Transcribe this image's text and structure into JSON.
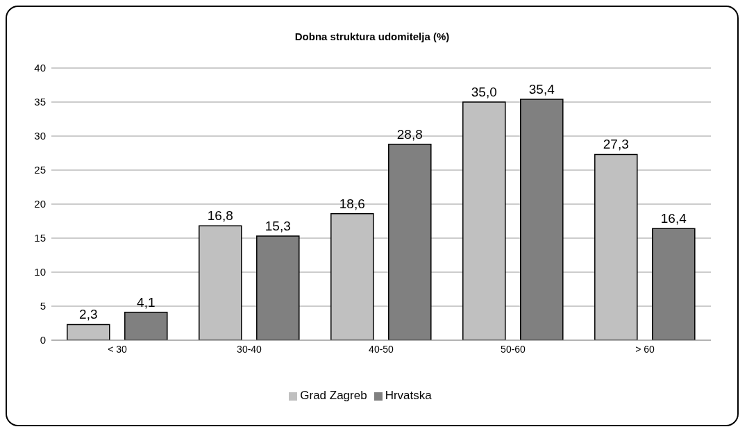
{
  "chart_data": {
    "type": "bar",
    "title": "Dobna struktura udomitelja (%)",
    "categories": [
      "< 30",
      "30-40",
      "40-50",
      "50-60",
      "> 60"
    ],
    "series": [
      {
        "name": "Grad Zagreb",
        "color": "#c0c0c0",
        "values": [
          2.3,
          16.8,
          18.6,
          35.0,
          27.3
        ],
        "value_labels": [
          "2,3",
          "16,8",
          "18,6",
          "35,0",
          "27,3"
        ]
      },
      {
        "name": "Hrvatska",
        "color": "#808080",
        "values": [
          4.1,
          15.3,
          28.8,
          35.4,
          16.4
        ],
        "value_labels": [
          "4,1",
          "15,3",
          "28,8",
          "35,4",
          "16,4"
        ]
      }
    ],
    "ylim": [
      0,
      40
    ],
    "yticks": [
      0,
      5,
      10,
      15,
      20,
      25,
      30,
      35,
      40
    ],
    "grid": "y",
    "legend": "bottom"
  }
}
